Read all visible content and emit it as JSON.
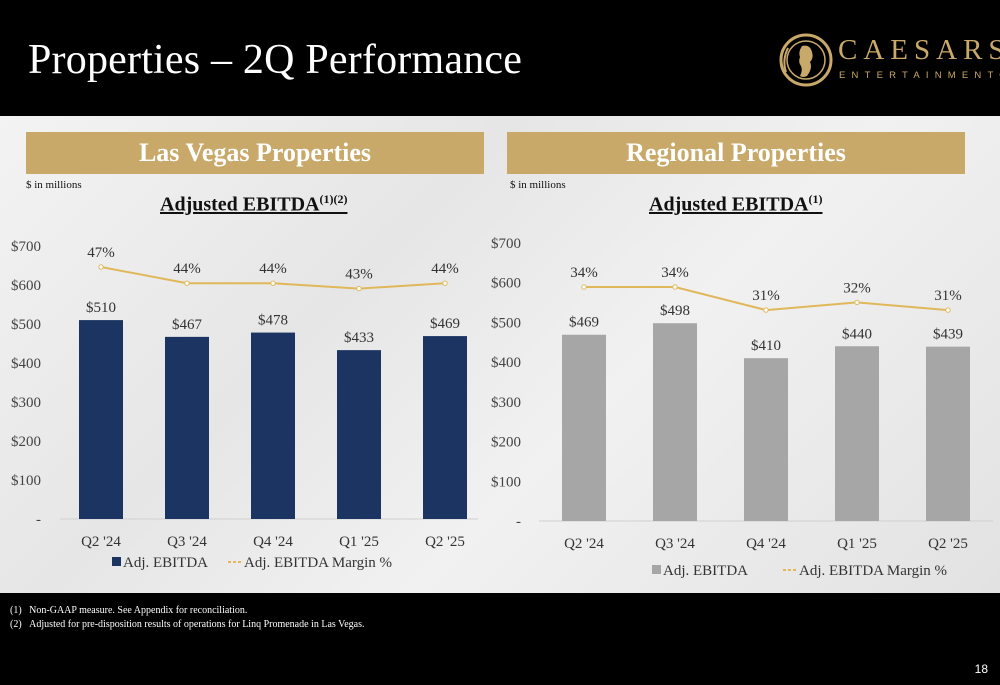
{
  "header": {
    "title": "Properties – 2Q Performance",
    "logo_brand": "CAESARS",
    "logo_sub": "ENTERTAINMENT",
    "logo_reg": "®"
  },
  "panels": [
    {
      "banner": "Las Vegas Properties",
      "units": "$ in millions",
      "chart_title": "Adjusted EBITDA",
      "chart_title_sup": "(1)(2)"
    },
    {
      "banner": "Regional Properties",
      "units": "$ in millions",
      "chart_title": "Adjusted EBITDA",
      "chart_title_sup": "(1)"
    }
  ],
  "chart_data": [
    {
      "type": "bar",
      "title": "Adjusted EBITDA",
      "categories": [
        "Q2 '24",
        "Q3 '24",
        "Q4 '24",
        "Q1 '25",
        "Q2 '25"
      ],
      "series": [
        {
          "name": "Adj. EBITDA",
          "type": "bar",
          "values": [
            510,
            467,
            478,
            433,
            469
          ],
          "labels": [
            "$510",
            "$467",
            "$478",
            "$433",
            "$469"
          ],
          "color": "#1c3461"
        },
        {
          "name": "Adj. EBITDA Margin %",
          "type": "line",
          "values": [
            47,
            44,
            44,
            43,
            44
          ],
          "labels": [
            "47%",
            "44%",
            "44%",
            "43%",
            "44%"
          ],
          "color": "#e0b85a"
        }
      ],
      "y_ticks": [
        "-",
        "$100",
        "$200",
        "$300",
        "$400",
        "$500",
        "$600",
        "$700"
      ],
      "ylim": [
        0,
        700
      ],
      "grid": false,
      "legend_position": "bottom"
    },
    {
      "type": "bar",
      "title": "Adjusted EBITDA",
      "categories": [
        "Q2 '24",
        "Q3 '24",
        "Q4 '24",
        "Q1 '25",
        "Q2 '25"
      ],
      "series": [
        {
          "name": "Adj. EBITDA",
          "type": "bar",
          "values": [
            469,
            498,
            410,
            440,
            439
          ],
          "labels": [
            "$469",
            "$498",
            "$410",
            "$440",
            "$439"
          ],
          "color": "#a6a6a6"
        },
        {
          "name": "Adj. EBITDA Margin %",
          "type": "line",
          "values": [
            34,
            34,
            31,
            32,
            31
          ],
          "labels": [
            "34%",
            "34%",
            "31%",
            "32%",
            "31%"
          ],
          "color": "#e0b85a"
        }
      ],
      "y_ticks": [
        "-",
        "$100",
        "$200",
        "$300",
        "$400",
        "$500",
        "$600",
        "$700"
      ],
      "ylim": [
        0,
        700
      ],
      "grid": false,
      "legend_position": "bottom"
    }
  ],
  "footnotes": [
    {
      "num": "(1)",
      "text": "Non-GAAP measure. See Appendix for reconciliation."
    },
    {
      "num": "(2)",
      "text": "Adjusted for pre-disposition results of operations for Linq Promenade in Las Vegas."
    }
  ],
  "page_number": "18"
}
